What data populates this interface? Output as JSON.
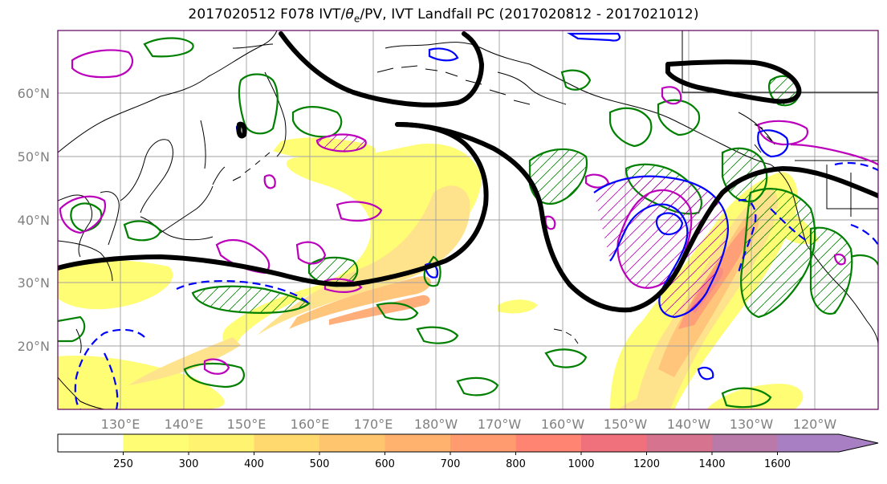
{
  "title": {
    "prefix": "2017020512 F078 IVT/",
    "theta_symbol": "θ",
    "theta_sub": "e",
    "suffix": "/PV, IVT Landfall PC (2017020812 - 2017021012)"
  },
  "map": {
    "lat_labels": [
      "60°N",
      "50°N",
      "40°N",
      "30°N",
      "20°N"
    ],
    "lon_labels": [
      "130°E",
      "140°E",
      "150°E",
      "160°E",
      "170°E",
      "180°W",
      "170°W",
      "160°W",
      "150°W",
      "140°W",
      "130°W",
      "120°W"
    ],
    "lat_values": [
      60,
      50,
      40,
      30,
      20
    ],
    "lon_values": [
      130,
      140,
      150,
      160,
      170,
      180,
      190,
      200,
      210,
      220,
      230,
      240
    ],
    "lon_range": [
      120,
      250
    ],
    "lat_range": [
      10,
      70
    ],
    "grid": true
  },
  "colorbar": {
    "levels": [
      "250",
      "300",
      "400",
      "500",
      "600",
      "700",
      "800",
      "1000",
      "1200",
      "1400",
      "1600"
    ],
    "colors": [
      "#ffffff",
      "#fffd73",
      "#fff36f",
      "#ffd96e",
      "#ffc56e",
      "#ffb16e",
      "#ff9b6e",
      "#ff8471",
      "#f0707b",
      "#d6738f",
      "#b979a9",
      "#a77fc2"
    ],
    "extend": "max"
  },
  "contour_colors": {
    "pv_line": "#000000",
    "theta_e": "#008000",
    "ivt_pc_positive": "#bb00bb",
    "ivt_pc_negative": "#0000ff"
  }
}
